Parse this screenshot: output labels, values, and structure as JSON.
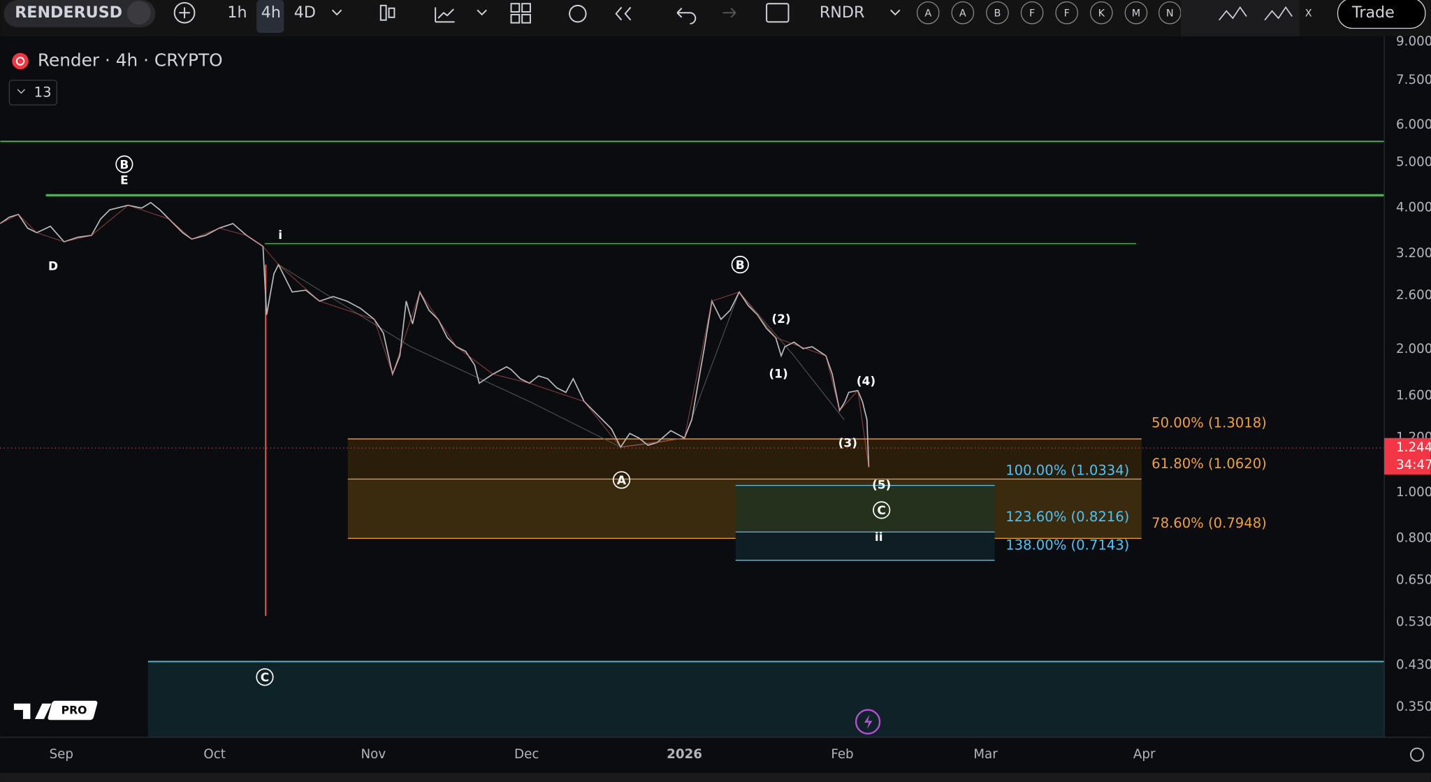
{
  "toolbar": {
    "symbol": "RENDERUSD",
    "intervals": [
      "1h",
      "4h",
      "4D"
    ],
    "compare": "RNDR",
    "letters": [
      "A",
      "A",
      "B",
      "F",
      "F",
      "K",
      "M",
      "N"
    ],
    "close": "X",
    "trade": "Trade"
  },
  "legend": {
    "title": "Render · 4h · CRYPTO",
    "indicators": "13"
  },
  "price_axis": [
    "9.000",
    "7.500",
    "6.000",
    "5.000",
    "4.000",
    "3.200",
    "2.600",
    "2.000",
    "1.600",
    "1.200",
    "1.000",
    "0.800",
    "0.650",
    "0.530",
    "0.430",
    "0.350"
  ],
  "current_price": {
    "price": "1.244",
    "countdown": "34:47"
  },
  "time_axis": [
    "Sep",
    "Oct",
    "Nov",
    "Dec",
    "2026",
    "Feb",
    "Mar",
    "Apr"
  ],
  "fib_retracement": [
    "50.00% (1.3018)",
    "61.80% (1.0620)",
    "78.60% (0.7948)"
  ],
  "fib_extension": [
    "100.00% (1.0334)",
    "123.60% (0.8216)",
    "138.00% (0.7143)"
  ],
  "waves": [
    "B",
    "E",
    "D",
    "i",
    "B",
    "(2)",
    "(1)",
    "(4)",
    "(3)",
    "A",
    "(5)",
    "C",
    "ii",
    "C"
  ],
  "logo": "PRO"
}
